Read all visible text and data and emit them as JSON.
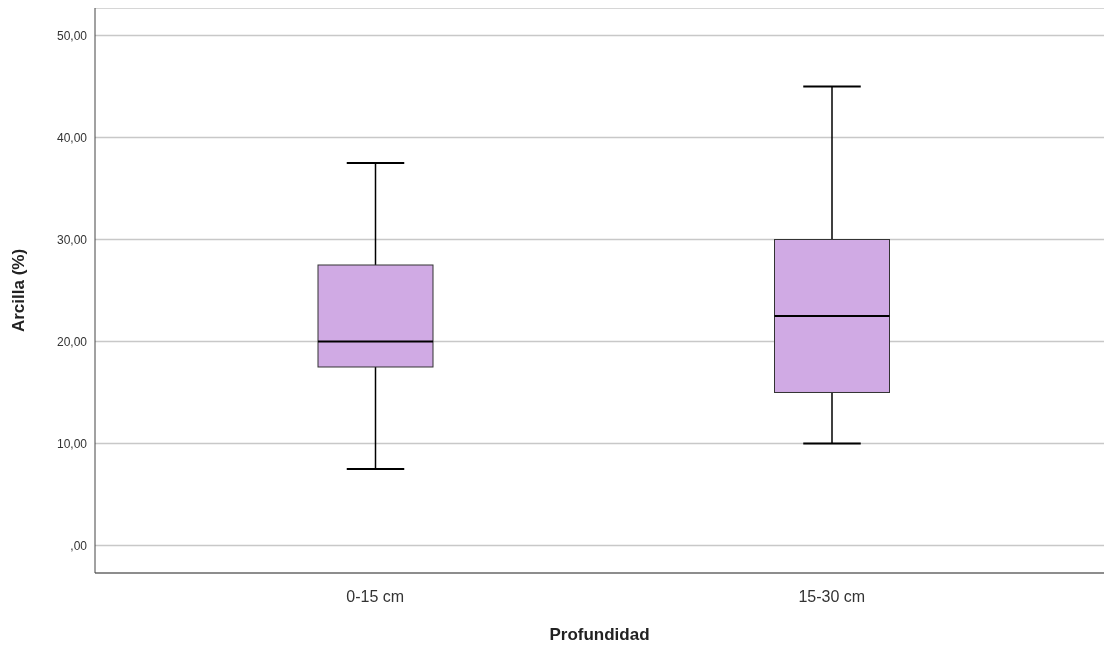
{
  "chart_data": {
    "type": "box",
    "xlabel": "Profundidad",
    "ylabel": "Arcilla (%)",
    "categories": [
      "0-15 cm",
      "15-30 cm"
    ],
    "boxes": [
      {
        "low": 7.5,
        "q1": 17.5,
        "median": 20,
        "q3": 27.5,
        "high": 37.5
      },
      {
        "low": 10,
        "q1": 15,
        "median": 22.5,
        "q3": 30,
        "high": 45
      }
    ],
    "color": "#d0aae4",
    "ylim": [
      -2.7,
      52.7
    ],
    "yticks": [
      {
        "value": 0,
        "label": ",00"
      },
      {
        "value": 10,
        "label": "10,00"
      },
      {
        "value": 20,
        "label": "20,00"
      },
      {
        "value": 30,
        "label": "30,00"
      },
      {
        "value": 40,
        "label": "40,00"
      },
      {
        "value": 50,
        "label": "50,00"
      }
    ],
    "grid": "y"
  }
}
